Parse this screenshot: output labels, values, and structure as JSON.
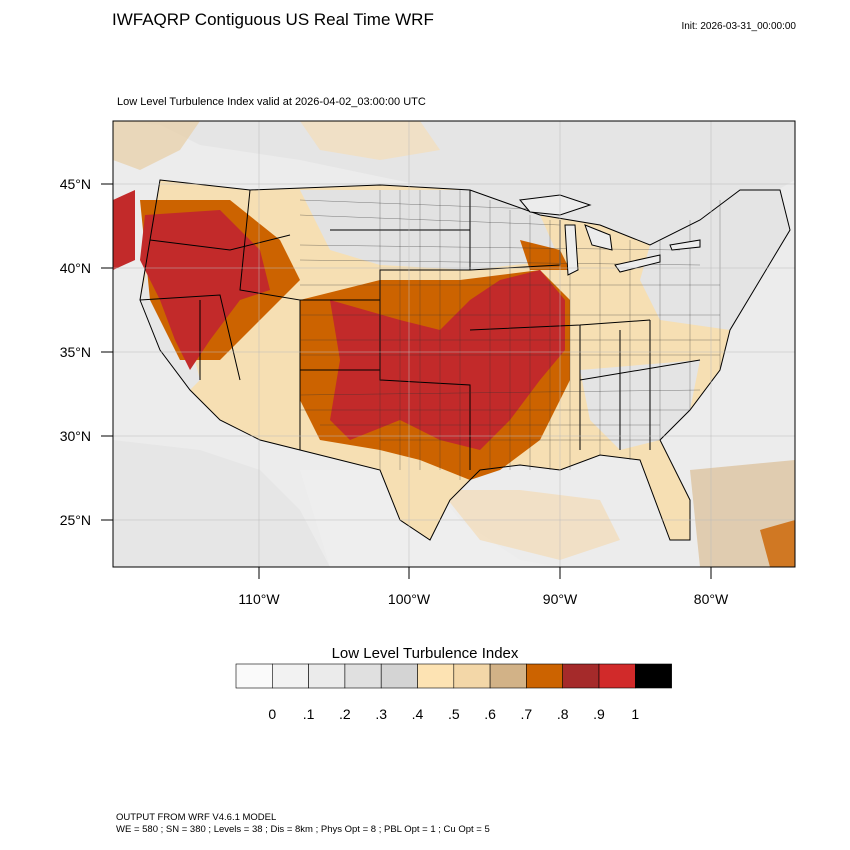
{
  "title": "IWFAQRP Contiguous US Real Time WRF",
  "init": "Init: 2026-03-31_00:00:00",
  "subtitle": "Low Level Turbulence Index valid at 2026-04-02_03:00:00 UTC",
  "map": {
    "lat_labels": [
      "45°N",
      "40°N",
      "35°N",
      "30°N",
      "25°N"
    ],
    "lon_labels": [
      "110°W",
      "100°W",
      "90°W",
      "80°W"
    ]
  },
  "colorbar": {
    "title": "Low Level Turbulence Index",
    "labels": [
      "0",
      ".1",
      ".2",
      ".3",
      ".4",
      ".5",
      ".6",
      ".7",
      ".8",
      ".9",
      "1"
    ],
    "colors": [
      "#fafafa",
      "#f2f2f2",
      "#ebebeb",
      "#e0e0e0",
      "#d4d4d4",
      "#fde3b3",
      "#f3d7a8",
      "#d2b287",
      "#cc6300",
      "#a52a2a",
      "#d12a2a",
      "#000000"
    ]
  },
  "footer": {
    "line1": "OUTPUT FROM WRF V4.6.1 MODEL",
    "line2": "WE = 580 ; SN = 380 ; Levels = 38 ; Dis = 8km ; Phys Opt = 8 ; PBL Opt = 1 ; Cu Opt = 5"
  }
}
